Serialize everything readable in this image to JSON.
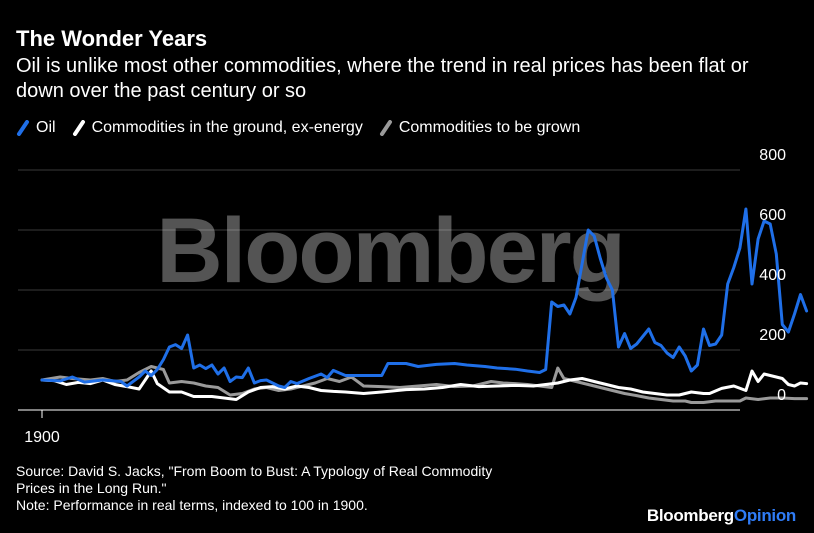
{
  "header": {
    "title": "The Wonder Years",
    "subtitle": "Oil is unlike most other commodities, where the trend in real prices has been flat or down over the past century or so"
  },
  "legend": [
    {
      "label": "Oil",
      "color": "#1f6fe8"
    },
    {
      "label": "Commodities in the ground, ex-energy",
      "color": "#ffffff"
    },
    {
      "label": "Commodities to be grown",
      "color": "#9a9a9a"
    }
  ],
  "watermark": "Bloomberg",
  "footer": {
    "source_line1": "Source: David S. Jacks, \"From Boom to Bust: A Typology of Real Commodity",
    "source_line2": "Prices in the Long Run.\"",
    "note": "Note: Performance in real terms, indexed to 100 in 1900.",
    "brand_main": "Bloomberg",
    "brand_accent": "Opinion"
  },
  "chart_data": {
    "type": "line",
    "title": "The Wonder Years",
    "xlabel": "",
    "ylabel": "",
    "x_start": 1900,
    "x_end": 2017,
    "x_tick_labels": [
      {
        "value": 1900,
        "label": "1900"
      }
    ],
    "ylim": [
      0,
      800
    ],
    "y_ticks": [
      0,
      200,
      400,
      600,
      800
    ],
    "grid": true,
    "legend_position": "top-left",
    "series": [
      {
        "name": "Oil",
        "color": "#1f6fe8",
        "points": [
          [
            1900,
            100
          ],
          [
            1903,
            97
          ],
          [
            1905,
            110
          ],
          [
            1907,
            93
          ],
          [
            1910,
            100
          ],
          [
            1913,
            95
          ],
          [
            1914,
            80
          ],
          [
            1916,
            110
          ],
          [
            1917,
            130
          ],
          [
            1918,
            115
          ],
          [
            1919,
            135
          ],
          [
            1920,
            168
          ],
          [
            1921,
            210
          ],
          [
            1922,
            218
          ],
          [
            1923,
            205
          ],
          [
            1924,
            250
          ],
          [
            1925,
            140
          ],
          [
            1926,
            150
          ],
          [
            1927,
            138
          ],
          [
            1928,
            150
          ],
          [
            1929,
            120
          ],
          [
            1930,
            140
          ],
          [
            1931,
            95
          ],
          [
            1932,
            110
          ],
          [
            1933,
            108
          ],
          [
            1934,
            140
          ],
          [
            1935,
            90
          ],
          [
            1936,
            98
          ],
          [
            1937,
            100
          ],
          [
            1939,
            80
          ],
          [
            1940,
            75
          ],
          [
            1941,
            95
          ],
          [
            1942,
            88
          ],
          [
            1944,
            105
          ],
          [
            1946,
            120
          ],
          [
            1947,
            108
          ],
          [
            1948,
            132
          ],
          [
            1950,
            115
          ],
          [
            1953,
            115
          ],
          [
            1956,
            115
          ],
          [
            1957,
            155
          ],
          [
            1960,
            155
          ],
          [
            1962,
            145
          ],
          [
            1965,
            152
          ],
          [
            1968,
            155
          ],
          [
            1970,
            150
          ],
          [
            1973,
            145
          ],
          [
            1975,
            140
          ],
          [
            1978,
            136
          ],
          [
            1980,
            130
          ],
          [
            1982,
            125
          ],
          [
            1983,
            135
          ],
          [
            1984,
            360
          ],
          [
            1985,
            345
          ],
          [
            1986,
            350
          ],
          [
            1987,
            320
          ],
          [
            1988,
            375
          ],
          [
            1990,
            600
          ],
          [
            1991,
            580
          ],
          [
            1992,
            505
          ],
          [
            1993,
            440
          ],
          [
            1994,
            400
          ],
          [
            1995,
            210
          ],
          [
            1996,
            255
          ],
          [
            1997,
            205
          ],
          [
            1998,
            220
          ],
          [
            2000,
            270
          ],
          [
            2001,
            225
          ],
          [
            2002,
            215
          ],
          [
            2003,
            190
          ],
          [
            2004,
            175
          ],
          [
            2005,
            210
          ],
          [
            2006,
            180
          ],
          [
            2007,
            130
          ],
          [
            2008,
            150
          ],
          [
            2009,
            270
          ],
          [
            2010,
            215
          ],
          [
            2011,
            220
          ],
          [
            2012,
            250
          ],
          [
            2013,
            420
          ],
          [
            2014,
            475
          ],
          [
            2015,
            540
          ],
          [
            2016,
            670
          ],
          [
            2017,
            420
          ],
          [
            2018,
            570
          ],
          [
            2019,
            630
          ],
          [
            2020,
            620
          ],
          [
            2021,
            520
          ],
          [
            2022,
            285
          ],
          [
            2023,
            260
          ],
          [
            2024,
            320
          ],
          [
            2025,
            385
          ],
          [
            2026,
            330
          ]
        ]
      },
      {
        "name": "Commodities in the ground, ex-energy",
        "color": "#ffffff",
        "points": [
          [
            1900,
            100
          ],
          [
            1902,
            98
          ],
          [
            1904,
            85
          ],
          [
            1906,
            92
          ],
          [
            1908,
            88
          ],
          [
            1910,
            100
          ],
          [
            1912,
            85
          ],
          [
            1914,
            78
          ],
          [
            1916,
            70
          ],
          [
            1917,
            100
          ],
          [
            1918,
            130
          ],
          [
            1919,
            88
          ],
          [
            1921,
            60
          ],
          [
            1923,
            60
          ],
          [
            1925,
            45
          ],
          [
            1928,
            45
          ],
          [
            1930,
            40
          ],
          [
            1932,
            35
          ],
          [
            1934,
            60
          ],
          [
            1936,
            75
          ],
          [
            1938,
            78
          ],
          [
            1940,
            70
          ],
          [
            1942,
            80
          ],
          [
            1944,
            75
          ],
          [
            1946,
            65
          ],
          [
            1948,
            62
          ],
          [
            1950,
            60
          ],
          [
            1953,
            55
          ],
          [
            1956,
            60
          ],
          [
            1960,
            68
          ],
          [
            1963,
            70
          ],
          [
            1966,
            75
          ],
          [
            1969,
            85
          ],
          [
            1972,
            78
          ],
          [
            1975,
            80
          ],
          [
            1978,
            82
          ],
          [
            1981,
            80
          ],
          [
            1983,
            85
          ],
          [
            1985,
            90
          ],
          [
            1987,
            100
          ],
          [
            1989,
            105
          ],
          [
            1991,
            95
          ],
          [
            1993,
            85
          ],
          [
            1995,
            75
          ],
          [
            1997,
            70
          ],
          [
            1999,
            60
          ],
          [
            2001,
            55
          ],
          [
            2003,
            50
          ],
          [
            2005,
            50
          ],
          [
            2007,
            60
          ],
          [
            2009,
            55
          ],
          [
            2010,
            55
          ],
          [
            2012,
            72
          ],
          [
            2014,
            80
          ],
          [
            2016,
            65
          ],
          [
            2017,
            130
          ],
          [
            2018,
            95
          ],
          [
            2019,
            120
          ],
          [
            2021,
            110
          ],
          [
            2022,
            105
          ],
          [
            2023,
            85
          ],
          [
            2024,
            80
          ],
          [
            2025,
            90
          ],
          [
            2026,
            88
          ]
        ]
      },
      {
        "name": "Commodities to be grown",
        "color": "#9a9a9a",
        "points": [
          [
            1900,
            100
          ],
          [
            1903,
            110
          ],
          [
            1905,
            105
          ],
          [
            1908,
            100
          ],
          [
            1910,
            105
          ],
          [
            1912,
            95
          ],
          [
            1914,
            100
          ],
          [
            1916,
            125
          ],
          [
            1918,
            145
          ],
          [
            1920,
            135
          ],
          [
            1921,
            90
          ],
          [
            1923,
            95
          ],
          [
            1925,
            90
          ],
          [
            1927,
            80
          ],
          [
            1929,
            75
          ],
          [
            1931,
            50
          ],
          [
            1933,
            55
          ],
          [
            1935,
            70
          ],
          [
            1937,
            75
          ],
          [
            1939,
            65
          ],
          [
            1941,
            70
          ],
          [
            1943,
            80
          ],
          [
            1945,
            90
          ],
          [
            1947,
            105
          ],
          [
            1949,
            95
          ],
          [
            1951,
            110
          ],
          [
            1953,
            80
          ],
          [
            1956,
            78
          ],
          [
            1959,
            75
          ],
          [
            1962,
            80
          ],
          [
            1965,
            85
          ],
          [
            1968,
            78
          ],
          [
            1971,
            80
          ],
          [
            1974,
            95
          ],
          [
            1976,
            90
          ],
          [
            1978,
            88
          ],
          [
            1980,
            85
          ],
          [
            1982,
            80
          ],
          [
            1984,
            75
          ],
          [
            1985,
            140
          ],
          [
            1986,
            105
          ],
          [
            1988,
            95
          ],
          [
            1990,
            85
          ],
          [
            1992,
            75
          ],
          [
            1994,
            65
          ],
          [
            1996,
            55
          ],
          [
            1998,
            48
          ],
          [
            2000,
            40
          ],
          [
            2002,
            35
          ],
          [
            2004,
            30
          ],
          [
            2006,
            30
          ],
          [
            2007,
            25
          ],
          [
            2009,
            25
          ],
          [
            2011,
            30
          ],
          [
            2013,
            30
          ],
          [
            2015,
            30
          ],
          [
            2016,
            40
          ],
          [
            2018,
            35
          ],
          [
            2020,
            40
          ],
          [
            2022,
            40
          ],
          [
            2024,
            38
          ],
          [
            2026,
            38
          ]
        ]
      }
    ]
  }
}
